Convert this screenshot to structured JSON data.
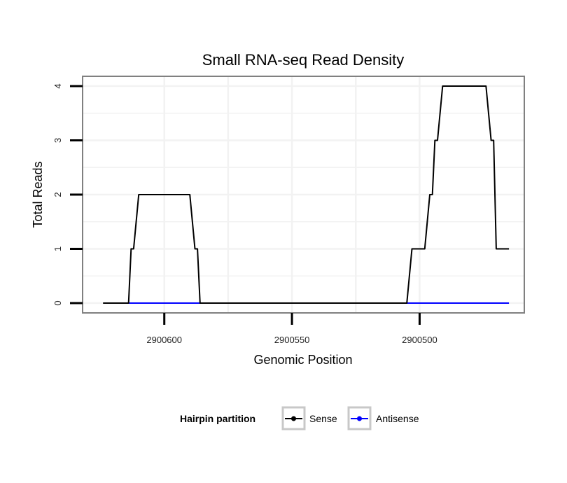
{
  "chart_data": {
    "type": "line",
    "title": "Small RNA-seq Read Density",
    "xlabel": "Genomic Position",
    "ylabel": "Total Reads",
    "x_reversed": true,
    "xlim": [
      2900632,
      2900459
    ],
    "ylim": [
      -0.18,
      4.18
    ],
    "x_ticks": [
      2900600,
      2900550,
      2900500
    ],
    "x_tick_labels": [
      "2900600",
      "2900550",
      "2900500"
    ],
    "y_ticks": [
      0,
      1,
      2,
      3,
      4
    ],
    "y_tick_labels": [
      "0",
      "1",
      "2",
      "3",
      "4"
    ],
    "grid": true,
    "legend_position": "bottom",
    "legend": {
      "title": "Hairpin partition",
      "entries": [
        {
          "name": "Sense",
          "color": "#000000"
        },
        {
          "name": "Antisense",
          "color": "#0000ff"
        }
      ]
    },
    "series": [
      {
        "name": "Sense",
        "color": "#000000",
        "x": [
          2900624,
          2900614,
          2900613,
          2900612,
          2900610,
          2900590,
          2900588,
          2900587,
          2900586,
          2900505,
          2900503,
          2900498,
          2900496,
          2900495,
          2900494,
          2900493,
          2900491,
          2900474,
          2900472,
          2900471,
          2900470,
          2900468,
          2900465
        ],
        "y": [
          0,
          0,
          1,
          1,
          2,
          2,
          1,
          1,
          0,
          0,
          1,
          1,
          2,
          2,
          3,
          3,
          4,
          4,
          3,
          3,
          1,
          1,
          1
        ]
      },
      {
        "name": "Antisense",
        "color": "#0000ff",
        "x": [
          2900614,
          2900586,
          2900586,
          2900505,
          2900505,
          2900465
        ],
        "y": [
          0,
          0,
          0,
          0,
          0,
          0
        ]
      }
    ]
  }
}
